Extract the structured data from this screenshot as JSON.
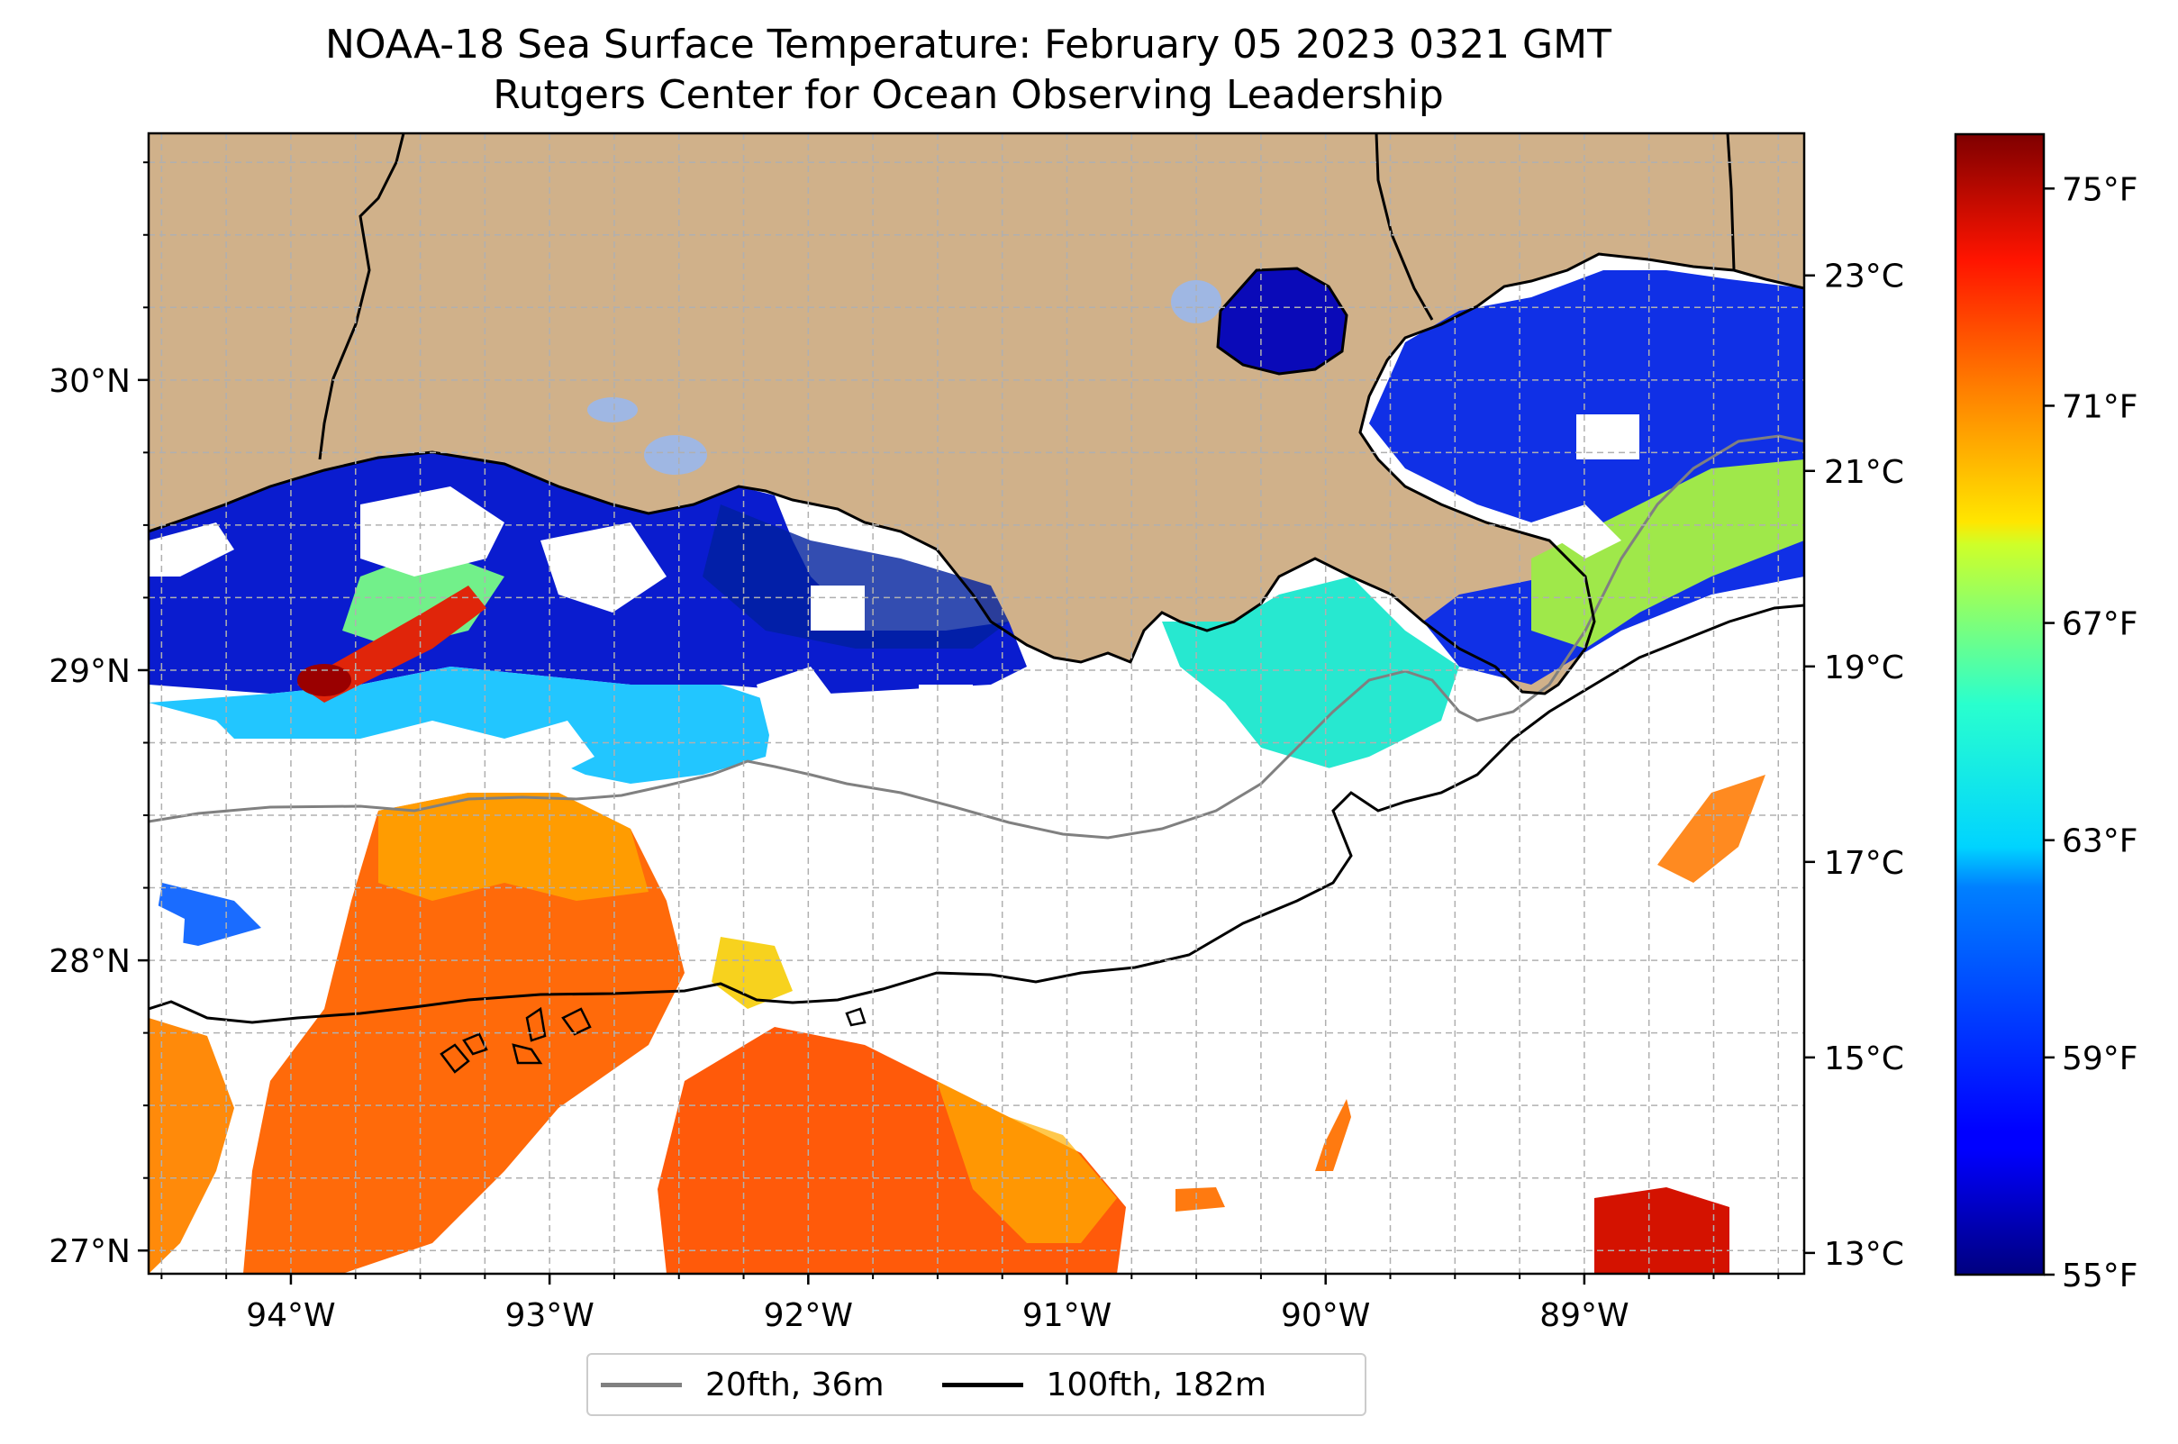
{
  "title": "NOAA-18 Sea Surface Temperature: February 05 2023 0321 GMT",
  "subtitle": "Rutgers Center for Ocean Observing Leadership",
  "map": {
    "lon_range": [
      -94.55,
      -88.15
    ],
    "lat_range": [
      26.92,
      30.85
    ],
    "lon_ticks": [
      "94°W",
      "93°W",
      "92°W",
      "91°W",
      "90°W",
      "89°W"
    ],
    "lat_ticks": [
      "27°N",
      "28°N",
      "29°N",
      "30°N"
    ],
    "land_color": "#d0b18a",
    "no_data_color": "#ffffff",
    "grid": true
  },
  "colorbar": {
    "colormap": "jet",
    "celsius_ticks": [
      "13°C",
      "15°C",
      "17°C",
      "19°C",
      "21°C",
      "23°C"
    ],
    "fahrenheit_ticks": [
      "55°F",
      "59°F",
      "63°F",
      "67°F",
      "71°F",
      "75°F"
    ],
    "range_f": [
      55,
      76
    ]
  },
  "legend": [
    {
      "label": "20fth, 36m",
      "color": "#808080"
    },
    {
      "label": "100fth, 182m",
      "color": "#000000"
    }
  ]
}
